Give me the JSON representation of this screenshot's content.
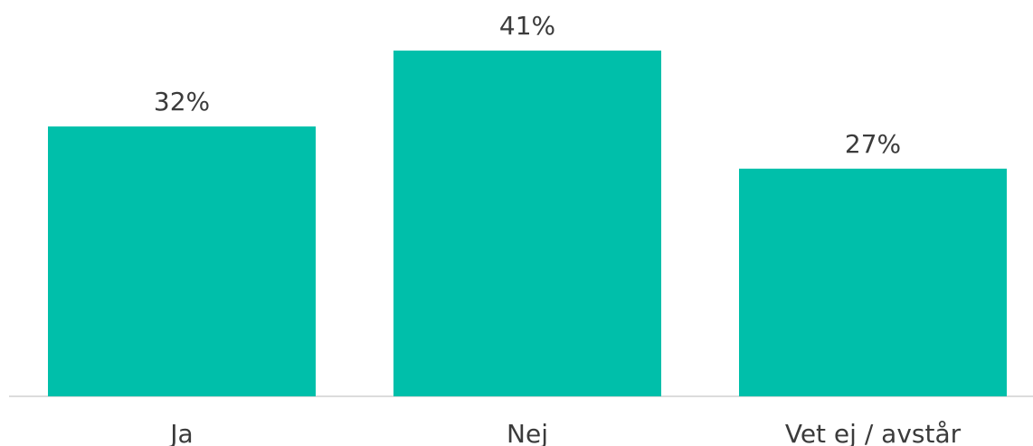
{
  "chart_data": {
    "type": "bar",
    "categories": [
      "Ja",
      "Nej",
      "Vet ej / avstår"
    ],
    "values": [
      32,
      41,
      27
    ],
    "value_labels": [
      "32%",
      "41%",
      "27%"
    ],
    "unit": "%",
    "ylim": [
      0,
      47
    ],
    "grid": false,
    "legend": "none",
    "bar_color": "#00BFAA",
    "baseline_color": "#D0D0D0"
  }
}
